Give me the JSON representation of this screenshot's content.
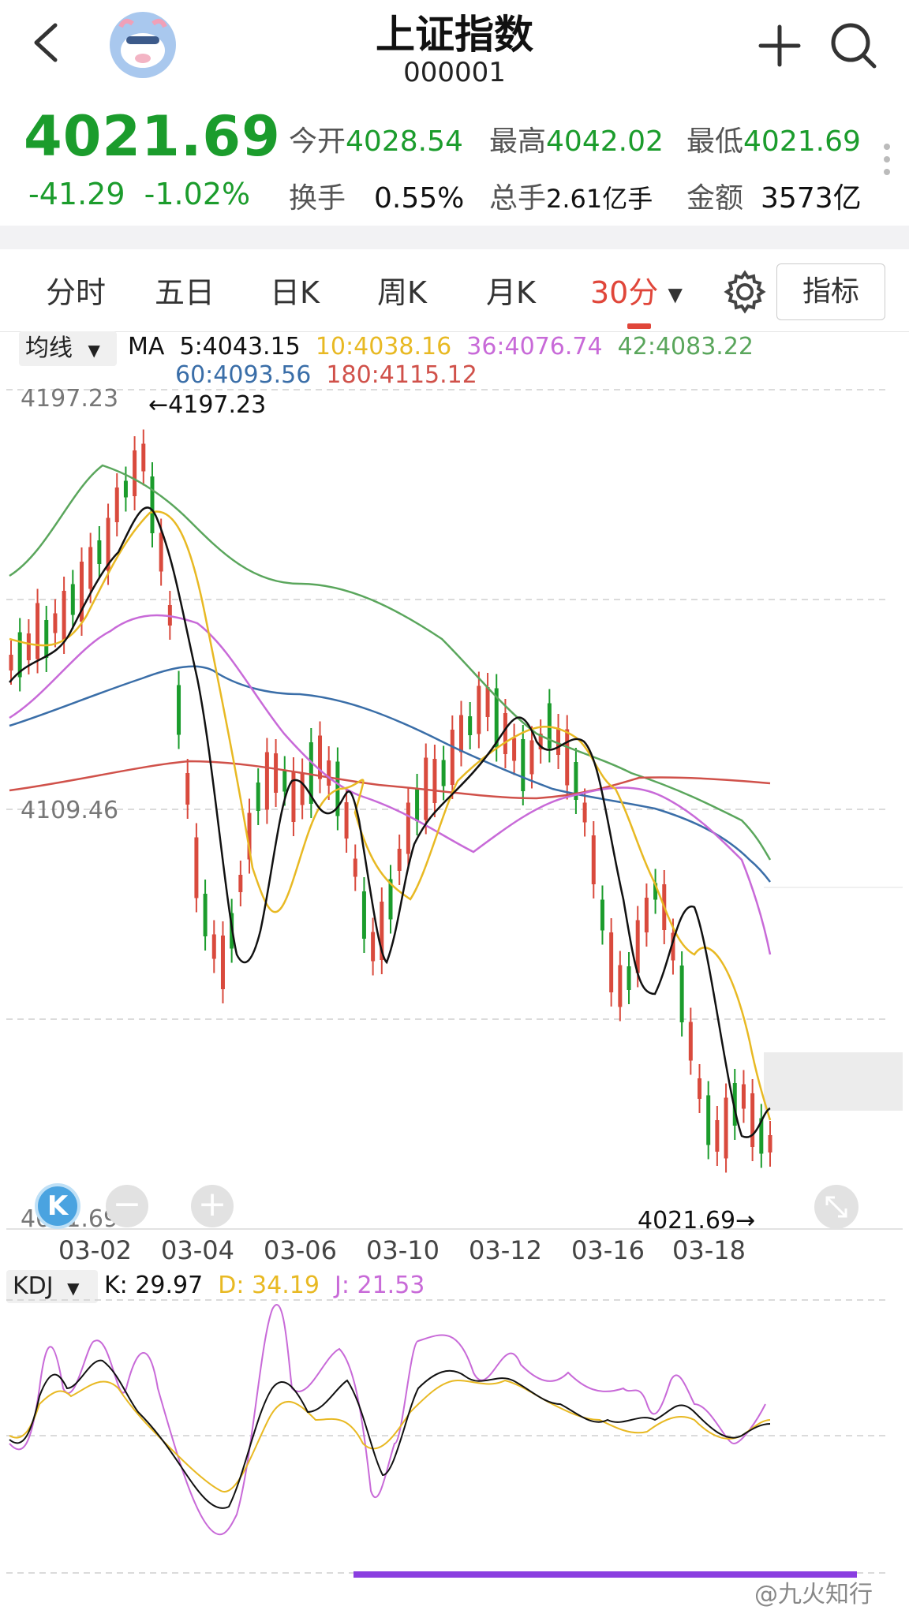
{
  "header": {
    "title": "上证指数",
    "code": "000001",
    "icons": [
      "back-icon",
      "avatar-icon",
      "add-icon",
      "search-icon"
    ]
  },
  "quote": {
    "price": "4021.69",
    "change": "-41.29",
    "change_pct": "-1.02%",
    "open_label": "今开",
    "open": "4028.54",
    "high_label": "最高",
    "high": "4042.02",
    "low_label": "最低",
    "low": "4021.69",
    "turnover_label": "换手",
    "turnover": "0.55%",
    "volume_label": "总手",
    "volume": "2.61亿手",
    "amount_label": "金额",
    "amount": "3573亿"
  },
  "tabs": {
    "items": [
      "分时",
      "五日",
      "日K",
      "周K",
      "月K",
      "30分"
    ],
    "active": "30分",
    "indicator_button": "指标"
  },
  "ma": {
    "selector": "均线",
    "prefix": "MA",
    "ma5": "5:4043.15",
    "ma10": "10:4038.16",
    "ma36": "36:4076.74",
    "ma42": "42:4083.22",
    "ma60": "60:4093.56",
    "ma180": "180:4115.12"
  },
  "chart_labels": {
    "top_axis": "4197.23",
    "high_marker": "4197.23",
    "mid_axis": "4109.46",
    "bottom_axis": "4021.69",
    "low_marker": "4021.69"
  },
  "dates": [
    "03-02",
    "03-04",
    "03-06",
    "03-10",
    "03-12",
    "03-16",
    "03-18"
  ],
  "kdj": {
    "selector": "KDJ",
    "k": "K: 29.97",
    "d": "D: 34.19",
    "j": "J: 21.53"
  },
  "colors": {
    "up": "#d94a3d",
    "down": "#1b9c2c",
    "ma5": "#111111",
    "ma10": "#e8b923",
    "ma36": "#c86ad8",
    "ma42": "#5aa65c",
    "ma60": "#3a6ea8",
    "ma180": "#d0514a",
    "active_tab": "#e0463a"
  },
  "watermark": "@九火知行"
}
